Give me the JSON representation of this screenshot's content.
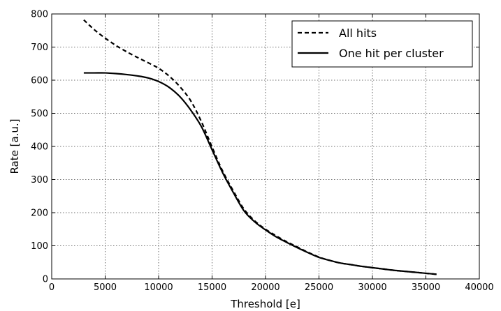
{
  "chart_data": {
    "type": "line",
    "title": "",
    "xlabel": "Threshold [e]",
    "ylabel": "Rate [a.u.]",
    "xlim": [
      0,
      40000
    ],
    "ylim": [
      0,
      800
    ],
    "xticks": [
      0,
      5000,
      10000,
      15000,
      20000,
      25000,
      30000,
      35000,
      40000
    ],
    "yticks": [
      0,
      100,
      200,
      300,
      400,
      500,
      600,
      700,
      800
    ],
    "xtick_labels": [
      "0",
      "5000",
      "10000",
      "15000",
      "20000",
      "25000",
      "30000",
      "35000",
      "40000"
    ],
    "ytick_labels": [
      "0",
      "100",
      "200",
      "300",
      "400",
      "500",
      "600",
      "700",
      "800"
    ],
    "grid": true,
    "legend_position": "top-right",
    "series": [
      {
        "name": "All hits",
        "style": "dashed",
        "color": "#000000",
        "x": [
          3000,
          4000,
          5000,
          6000,
          7000,
          8000,
          9000,
          10000,
          11000,
          12000,
          13000,
          14000,
          15000,
          16000,
          17000,
          18000,
          19000,
          20000,
          21000,
          22000,
          23000,
          24000,
          25000,
          26000,
          27000,
          28000,
          29000,
          30000,
          31000,
          32000,
          33000,
          34000,
          35000,
          36000
        ],
        "y": [
          782,
          752,
          727,
          705,
          686,
          669,
          653,
          636,
          612,
          580,
          538,
          475,
          398,
          325,
          265,
          210,
          175,
          150,
          130,
          112,
          96,
          80,
          66,
          56,
          48,
          43,
          38,
          34,
          30,
          26,
          23,
          20,
          17,
          14
        ]
      },
      {
        "name": "One hit per cluster",
        "style": "solid",
        "color": "#000000",
        "x": [
          3000,
          4000,
          5000,
          6000,
          7000,
          8000,
          9000,
          10000,
          11000,
          12000,
          13000,
          14000,
          15000,
          16000,
          17000,
          18000,
          19000,
          20000,
          21000,
          22000,
          23000,
          24000,
          25000,
          26000,
          27000,
          28000,
          29000,
          30000,
          31000,
          32000,
          33000,
          34000,
          35000,
          36000
        ],
        "y": [
          622,
          622,
          622,
          620,
          617,
          613,
          607,
          596,
          578,
          550,
          510,
          460,
          390,
          320,
          260,
          205,
          172,
          148,
          127,
          110,
          94,
          79,
          65,
          56,
          48,
          43,
          38,
          34,
          30,
          26,
          23,
          20,
          17,
          14
        ]
      }
    ]
  }
}
